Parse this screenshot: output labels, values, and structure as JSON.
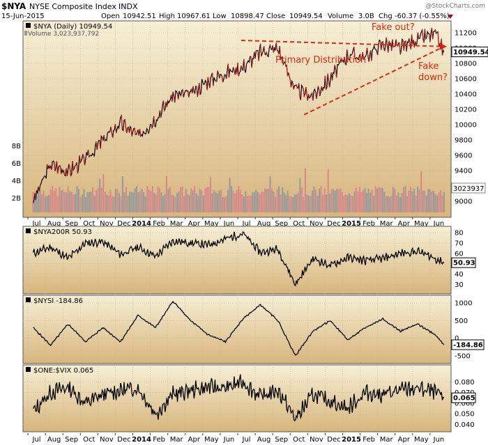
{
  "header": {
    "symbol": "$NYA",
    "name": "NYSE Composite Index",
    "exchange": "INDX",
    "date": "15-Jun-2015",
    "open_label": "Open",
    "open": "10942.51",
    "high_label": "High",
    "high": "10967.61",
    "low_label": "Low",
    "low": "10898.47",
    "close_label": "Close",
    "close": "10949.54",
    "volume_label": "Volume",
    "volume": "3.0B",
    "chg_label": "Chg",
    "chg": "-60.37 (-0.55%)",
    "watermark": "@StockCharts.com"
  },
  "colors": {
    "bg_top": "#f6efd6",
    "bg_bottom": "#d7b57c",
    "price_up": "#000000",
    "price_down": "#cc1a1a",
    "annotation": "#dd2a10",
    "vol_up": "#9a9a9a",
    "vol_down": "#d88a8a"
  },
  "months": [
    "Jul",
    "Aug",
    "Sep",
    "Oct",
    "Nov",
    "Dec",
    "2014",
    "Feb",
    "Mar",
    "Apr",
    "May",
    "Jun",
    "Jul",
    "Aug",
    "Sep",
    "Oct",
    "Nov",
    "Dec",
    "2015",
    "Feb",
    "Mar",
    "Apr",
    "May",
    "Jun"
  ],
  "chart_data": [
    {
      "type": "line",
      "panel": "price",
      "legend": "$NYA (Daily) 10949.54",
      "volume_legend": "Volume 3,023,937,792",
      "y_ticks": [
        "11200",
        "11000",
        "10800",
        "10600",
        "10400",
        "10200",
        "10000",
        "9800",
        "9600",
        "9400",
        "9200",
        "9000"
      ],
      "ylim": [
        8900,
        11300
      ],
      "volume_ticks": [
        "8B",
        "6B",
        "4B",
        "2B"
      ],
      "last_value_label": "10949.54",
      "volume_last_label": "3023937",
      "annotations": {
        "fake_out": "Fake out?",
        "primary": "Primary Distribution",
        "fake_down_1": "Fake",
        "fake_down_2": "down?"
      },
      "x_months": [
        0,
        1,
        2,
        3,
        4,
        5,
        6,
        7,
        8,
        9,
        10,
        11,
        12,
        13,
        14,
        15,
        16,
        17,
        18,
        19,
        20,
        21,
        22,
        23,
        23.5
      ],
      "close": [
        9000,
        9480,
        9390,
        9550,
        9800,
        10020,
        9850,
        10080,
        10380,
        10400,
        10570,
        10680,
        10750,
        10950,
        11000,
        10450,
        10380,
        10600,
        10920,
        10880,
        11060,
        11000,
        11120,
        11180,
        10950
      ],
      "key_points": [
        [
          11.9,
          11100
        ],
        [
          15.5,
          10130
        ],
        [
          20.0,
          10630
        ],
        [
          23.5,
          10950
        ]
      ],
      "trendlines": [
        {
          "from": [
            11.9,
            11100
          ],
          "to": [
            23.5,
            11020
          ]
        },
        {
          "from": [
            15.5,
            10130
          ],
          "to": [
            23.5,
            11020
          ]
        }
      ]
    },
    {
      "type": "line",
      "panel": "nya200r",
      "legend": "$NYA200R 50.93",
      "y_ticks": [
        "80",
        "70",
        "60",
        "50",
        "40",
        "30"
      ],
      "ylim": [
        25,
        82
      ],
      "last_value_label": "50.93",
      "x_months": [
        0,
        1,
        2,
        3,
        4,
        5,
        6,
        7,
        8,
        9,
        10,
        11,
        12,
        13,
        14,
        15,
        16,
        17,
        18,
        19,
        20,
        21,
        22,
        23,
        23.5
      ],
      "values": [
        60,
        66,
        55,
        70,
        71,
        59,
        66,
        57,
        72,
        70,
        68,
        74,
        79,
        61,
        64,
        30,
        55,
        48,
        56,
        53,
        55,
        60,
        62,
        55,
        51
      ]
    },
    {
      "type": "line",
      "panel": "nysi",
      "legend": "$NYSI -184.86",
      "y_ticks": [
        "1000",
        "500",
        "0",
        "-500"
      ],
      "ylim": [
        -600,
        1100
      ],
      "last_value_label": "-184.86",
      "x_months": [
        0,
        1,
        2,
        3,
        4,
        5,
        6,
        7,
        8,
        9,
        10,
        11,
        12,
        13,
        14,
        15,
        16,
        17,
        18,
        19,
        20,
        21,
        22,
        23,
        23.5
      ],
      "values": [
        300,
        -200,
        400,
        -100,
        300,
        -100,
        650,
        300,
        1050,
        500,
        100,
        -100,
        550,
        950,
        500,
        -500,
        200,
        500,
        -50,
        300,
        550,
        200,
        400,
        100,
        -185
      ]
    },
    {
      "type": "line",
      "panel": "one_vix",
      "legend": "$ONE:$VIX 0.065",
      "y_ticks": [
        "0.080",
        "0.070",
        "0.060",
        "0.050",
        "0.040"
      ],
      "ylim": [
        0.037,
        0.092
      ],
      "last_value_label": "0.065",
      "x_months": [
        0,
        1,
        2,
        3,
        4,
        5,
        6,
        7,
        8,
        9,
        10,
        11,
        12,
        13,
        14,
        15,
        16,
        17,
        18,
        19,
        20,
        21,
        22,
        23,
        23.5
      ],
      "values": [
        0.052,
        0.07,
        0.075,
        0.06,
        0.068,
        0.072,
        0.074,
        0.05,
        0.068,
        0.072,
        0.075,
        0.074,
        0.08,
        0.066,
        0.072,
        0.045,
        0.068,
        0.062,
        0.055,
        0.07,
        0.068,
        0.072,
        0.074,
        0.07,
        0.065
      ]
    }
  ]
}
